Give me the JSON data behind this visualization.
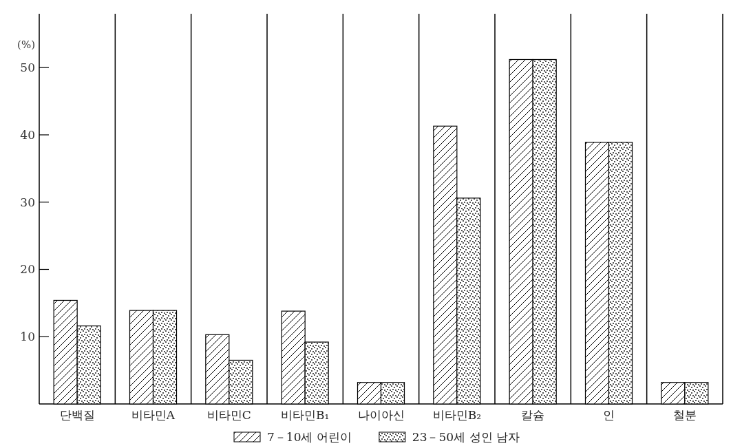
{
  "chart_data": {
    "type": "bar",
    "ylabel": "(%)",
    "categories": [
      "단백질",
      "비타민A",
      "비타민C",
      "비타민B₁",
      "나이아신",
      "비타민B₂",
      "칼슘",
      "인",
      "철분"
    ],
    "series": [
      {
        "name": "7－10세 어린이",
        "color": "#000000",
        "values": [
          15.4,
          13.9,
          10.3,
          13.8,
          3.2,
          41.3,
          51.2,
          38.9,
          3.2
        ]
      },
      {
        "name": "23－50세 성인 남자",
        "color": "#000000",
        "values": [
          11.6,
          13.9,
          6.5,
          9.2,
          3.2,
          30.6,
          51.2,
          38.9,
          3.2
        ]
      }
    ],
    "ylim": [
      0,
      58
    ],
    "yticks": [
      10,
      20,
      30,
      40,
      50
    ],
    "grid": "x",
    "legend": "bottom"
  }
}
